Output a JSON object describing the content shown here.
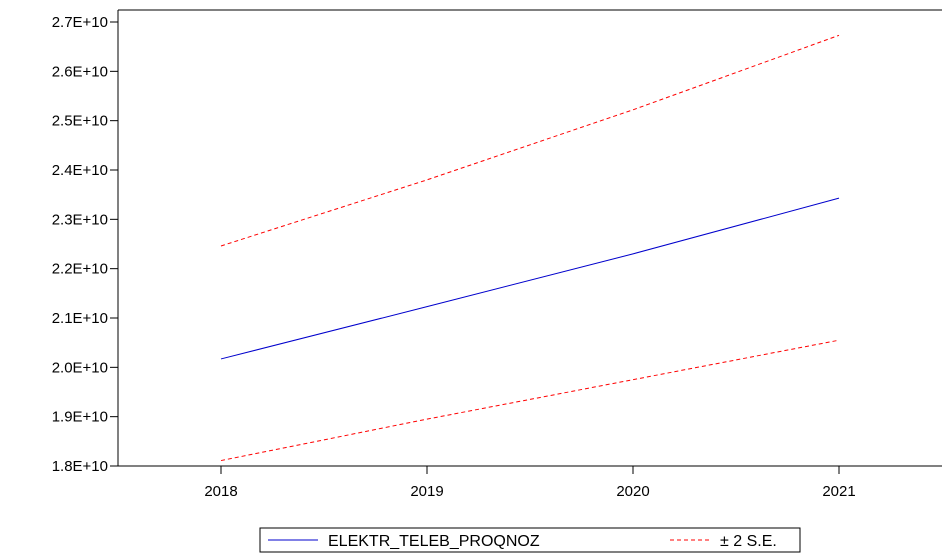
{
  "chart_data": {
    "type": "line",
    "title": "",
    "xlabel": "",
    "ylabel": "",
    "x": [
      "2018",
      "2019",
      "2020",
      "2021"
    ],
    "xlim": [
      2017.5,
      2021.5
    ],
    "ylim": [
      18000000000,
      27000000000
    ],
    "y_ticks": [
      18000000000,
      19000000000,
      20000000000,
      21000000000,
      22000000000,
      23000000000,
      24000000000,
      25000000000,
      26000000000,
      27000000000
    ],
    "y_tick_labels": [
      "1.8E+10",
      "1.9E+10",
      "2.0E+10",
      "2.1E+10",
      "2.2E+10",
      "2.3E+10",
      "2.4E+10",
      "2.5E+10",
      "2.6E+10",
      "2.7E+10"
    ],
    "x_tick_labels": [
      "2018",
      "2019",
      "2020",
      "2021"
    ],
    "grid": false,
    "legend_position": "bottom-center",
    "series": [
      {
        "name": "ELEKTR_TELEB_PROQNOZ",
        "style": "solid",
        "color": "#0000cc",
        "values": [
          20170000000,
          21230000000,
          22300000000,
          23430000000
        ]
      },
      {
        "name": "± 2 S.E.",
        "style": "dashed",
        "color": "#ff0000",
        "band": "upper",
        "values": [
          22460000000,
          23800000000,
          25220000000,
          26730000000
        ]
      },
      {
        "name": "",
        "style": "dashed",
        "color": "#ff0000",
        "band": "lower",
        "values": [
          18110000000,
          18950000000,
          19750000000,
          20550000000
        ]
      }
    ]
  }
}
